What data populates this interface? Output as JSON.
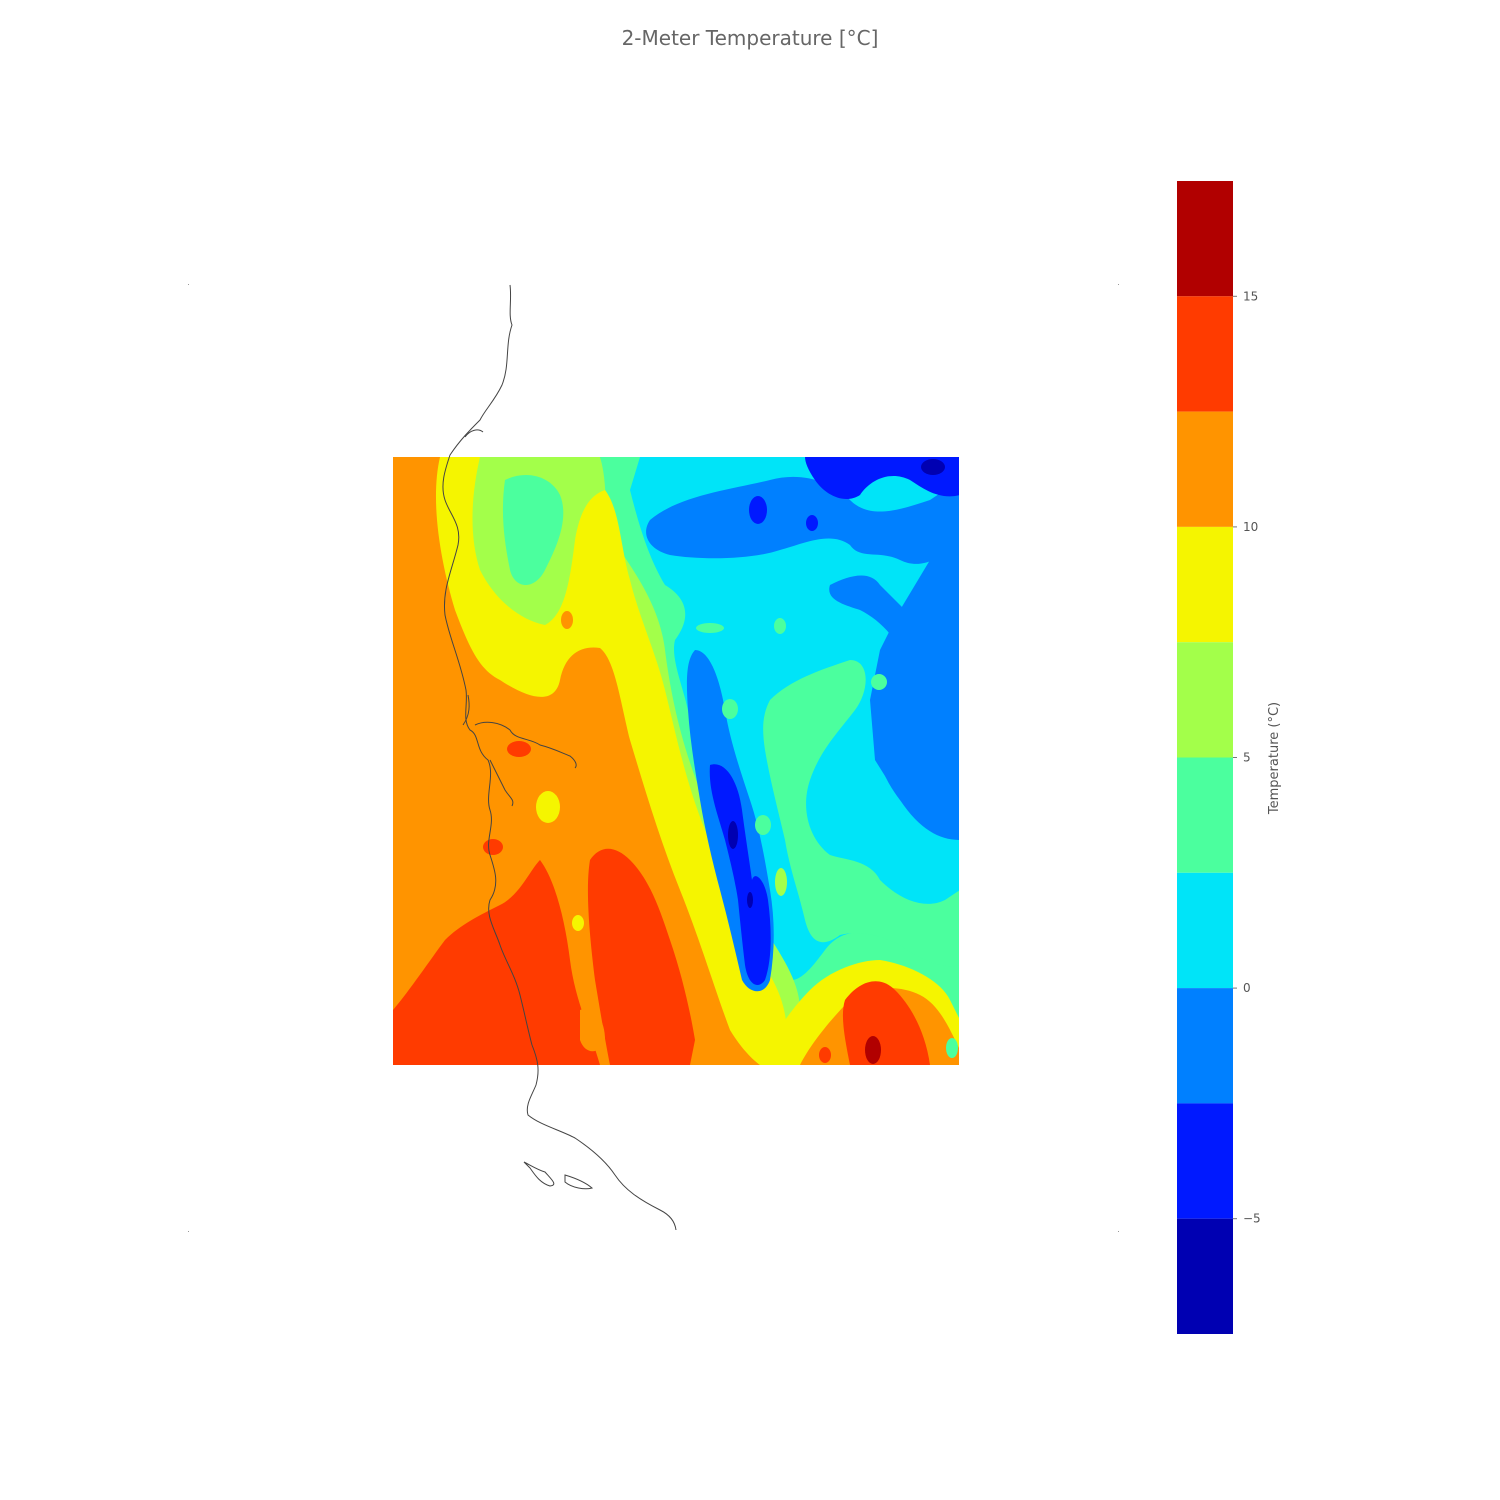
{
  "title": "2-Meter Temperature [°C]",
  "colorbar": {
    "label": "Temperature (°C)",
    "ticks": [
      {
        "value": 15,
        "text": "15"
      },
      {
        "value": 10,
        "text": "10"
      },
      {
        "value": 5,
        "text": "5"
      },
      {
        "value": 0,
        "text": "0"
      },
      {
        "value": -5,
        "text": "−5"
      }
    ],
    "range": [
      -7.5,
      17.5
    ],
    "levels": [
      {
        "from": 15,
        "to": 17.5,
        "color": "#b10000"
      },
      {
        "from": 12.5,
        "to": 15,
        "color": "#ff3b00"
      },
      {
        "from": 10,
        "to": 12.5,
        "color": "#ff9400"
      },
      {
        "from": 7.5,
        "to": 10,
        "color": "#f5f500"
      },
      {
        "from": 5,
        "to": 7.5,
        "color": "#a3ff4a"
      },
      {
        "from": 2.5,
        "to": 5,
        "color": "#4bff9e"
      },
      {
        "from": 0,
        "to": 2.5,
        "color": "#00e4f8"
      },
      {
        "from": -2.5,
        "to": 0,
        "color": "#0080ff"
      },
      {
        "from": -5,
        "to": -2.5,
        "color": "#0019ff"
      },
      {
        "from": -7.5,
        "to": -5,
        "color": "#0000b2"
      }
    ]
  },
  "map": {
    "colormap": "jet",
    "coastline_color": "#444444"
  }
}
